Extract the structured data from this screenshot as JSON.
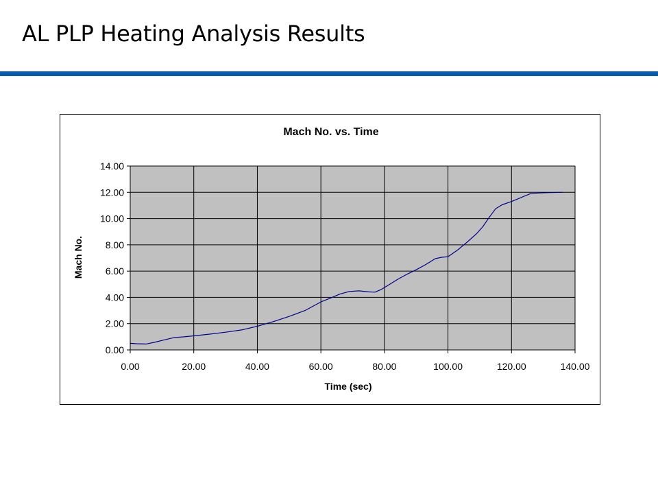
{
  "slide": {
    "title": "AL PLP Heating Analysis Results",
    "accent_color": "#0a5ca8"
  },
  "chart_data": {
    "type": "line",
    "title": "Mach No. vs. Time",
    "xlabel": "Time (sec)",
    "ylabel": "Mach No.",
    "xlim": [
      0,
      140
    ],
    "ylim": [
      0,
      14
    ],
    "x_ticks": [
      "0.00",
      "20.00",
      "40.00",
      "60.00",
      "80.00",
      "100.00",
      "120.00",
      "140.00"
    ],
    "y_ticks": [
      "0.00",
      "2.00",
      "4.00",
      "6.00",
      "8.00",
      "10.00",
      "12.00",
      "14.00"
    ],
    "grid": true,
    "legend": "none",
    "plot_background": "#c0c0c0",
    "series": [
      {
        "color": "#00008b",
        "points": [
          [
            0,
            0.5
          ],
          [
            2,
            0.47
          ],
          [
            5,
            0.45
          ],
          [
            8,
            0.6
          ],
          [
            11,
            0.78
          ],
          [
            14,
            0.95
          ],
          [
            17,
            1.0
          ],
          [
            20,
            1.07
          ],
          [
            25,
            1.2
          ],
          [
            30,
            1.35
          ],
          [
            35,
            1.52
          ],
          [
            40,
            1.8
          ],
          [
            45,
            2.15
          ],
          [
            50,
            2.55
          ],
          [
            55,
            3.0
          ],
          [
            60,
            3.65
          ],
          [
            63,
            3.95
          ],
          [
            66,
            4.25
          ],
          [
            69,
            4.45
          ],
          [
            72,
            4.5
          ],
          [
            75,
            4.42
          ],
          [
            77,
            4.4
          ],
          [
            79,
            4.6
          ],
          [
            81,
            4.9
          ],
          [
            84,
            5.35
          ],
          [
            87,
            5.75
          ],
          [
            90,
            6.1
          ],
          [
            93,
            6.5
          ],
          [
            96,
            6.95
          ],
          [
            98,
            7.05
          ],
          [
            100,
            7.1
          ],
          [
            103,
            7.6
          ],
          [
            106,
            8.2
          ],
          [
            109,
            8.85
          ],
          [
            111,
            9.4
          ],
          [
            113,
            10.1
          ],
          [
            115,
            10.75
          ],
          [
            117,
            11.05
          ],
          [
            120,
            11.3
          ],
          [
            123,
            11.6
          ],
          [
            126,
            11.9
          ],
          [
            129,
            11.95
          ],
          [
            132,
            11.98
          ],
          [
            136,
            12.0
          ]
        ]
      }
    ]
  }
}
